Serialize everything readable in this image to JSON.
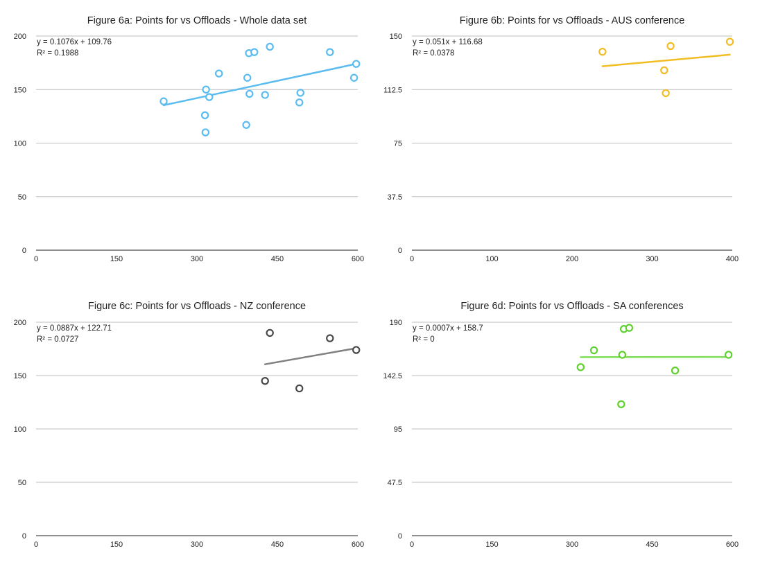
{
  "chart_data": [
    {
      "type": "scatter",
      "title": "Figure 6a: Points for vs Offloads - Whole data set",
      "xlim": [
        0,
        600
      ],
      "ylim": [
        0,
        200
      ],
      "xticks": [
        "0",
        "150",
        "300",
        "450",
        "600"
      ],
      "yticks": [
        "0",
        "50",
        "100",
        "150",
        "200"
      ],
      "grid": true,
      "color": "#5bbcf0",
      "trendline": {
        "slope": 0.1076,
        "intercept": 109.76,
        "x": [
          238,
          597
        ]
      },
      "equation": "y = 0.1076x + 109.76",
      "r_squared": "R² = 0.1988",
      "points": [
        {
          "x": 238,
          "y": 139
        },
        {
          "x": 315,
          "y": 126
        },
        {
          "x": 316,
          "y": 110
        },
        {
          "x": 317,
          "y": 150
        },
        {
          "x": 323,
          "y": 143
        },
        {
          "x": 341,
          "y": 165
        },
        {
          "x": 392,
          "y": 117
        },
        {
          "x": 394,
          "y": 161
        },
        {
          "x": 397,
          "y": 184
        },
        {
          "x": 398,
          "y": 146
        },
        {
          "x": 407,
          "y": 185
        },
        {
          "x": 427,
          "y": 145
        },
        {
          "x": 436,
          "y": 190
        },
        {
          "x": 491,
          "y": 138
        },
        {
          "x": 493,
          "y": 147
        },
        {
          "x": 548,
          "y": 185
        },
        {
          "x": 593,
          "y": 161
        },
        {
          "x": 597,
          "y": 174
        }
      ]
    },
    {
      "type": "scatter",
      "title": "Figure 6b: Points for vs Offloads - AUS conference",
      "xlim": [
        0,
        400
      ],
      "ylim": [
        0,
        150
      ],
      "xticks": [
        "0",
        "100",
        "200",
        "300",
        "400"
      ],
      "yticks": [
        "0",
        "37.5",
        "75",
        "112.5",
        "150"
      ],
      "grid": true,
      "color": "#f2bd22",
      "trendline": {
        "slope": 0.051,
        "intercept": 116.68,
        "x": [
          238,
          397
        ]
      },
      "equation": "y = 0.051x + 116.68",
      "r_squared": "R² = 0.0378",
      "points": [
        {
          "x": 238,
          "y": 139
        },
        {
          "x": 315,
          "y": 126
        },
        {
          "x": 317,
          "y": 110
        },
        {
          "x": 323,
          "y": 143
        },
        {
          "x": 397,
          "y": 146
        }
      ]
    },
    {
      "type": "scatter",
      "title": "Figure 6c: Points for vs Offloads - NZ conference",
      "xlim": [
        0,
        600
      ],
      "ylim": [
        0,
        200
      ],
      "xticks": [
        "0",
        "150",
        "300",
        "450",
        "600"
      ],
      "yticks": [
        "0",
        "50",
        "100",
        "150",
        "200"
      ],
      "grid": true,
      "color": "#4a4a4a",
      "trend_color": "#808080",
      "trendline": {
        "slope": 0.0887,
        "intercept": 122.71,
        "x": [
          427,
          597
        ]
      },
      "equation": "y = 0.0887x + 122.71",
      "r_squared": "R² = 0.0727",
      "points": [
        {
          "x": 427,
          "y": 145
        },
        {
          "x": 436,
          "y": 190
        },
        {
          "x": 491,
          "y": 138
        },
        {
          "x": 548,
          "y": 185
        },
        {
          "x": 597,
          "y": 174
        }
      ]
    },
    {
      "type": "scatter",
      "title": "Figure 6d: Points for vs Offloads - SA conferences",
      "xlim": [
        0,
        600
      ],
      "ylim": [
        0,
        190
      ],
      "xticks": [
        "0",
        "150",
        "300",
        "450",
        "600"
      ],
      "yticks": [
        "0",
        "47.5",
        "95",
        "142.5",
        "190"
      ],
      "grid": true,
      "color": "#5ed12e",
      "trend_color": "#7ddf55",
      "trendline": {
        "slope": 0.0007,
        "intercept": 158.7,
        "x": [
          316,
          593
        ]
      },
      "equation": "y = 0.0007x + 158.7",
      "r_squared": "R² = 0",
      "points": [
        {
          "x": 316,
          "y": 150
        },
        {
          "x": 341,
          "y": 165
        },
        {
          "x": 392,
          "y": 117
        },
        {
          "x": 394,
          "y": 161
        },
        {
          "x": 397,
          "y": 184
        },
        {
          "x": 407,
          "y": 185
        },
        {
          "x": 493,
          "y": 147
        },
        {
          "x": 593,
          "y": 161
        }
      ]
    }
  ]
}
